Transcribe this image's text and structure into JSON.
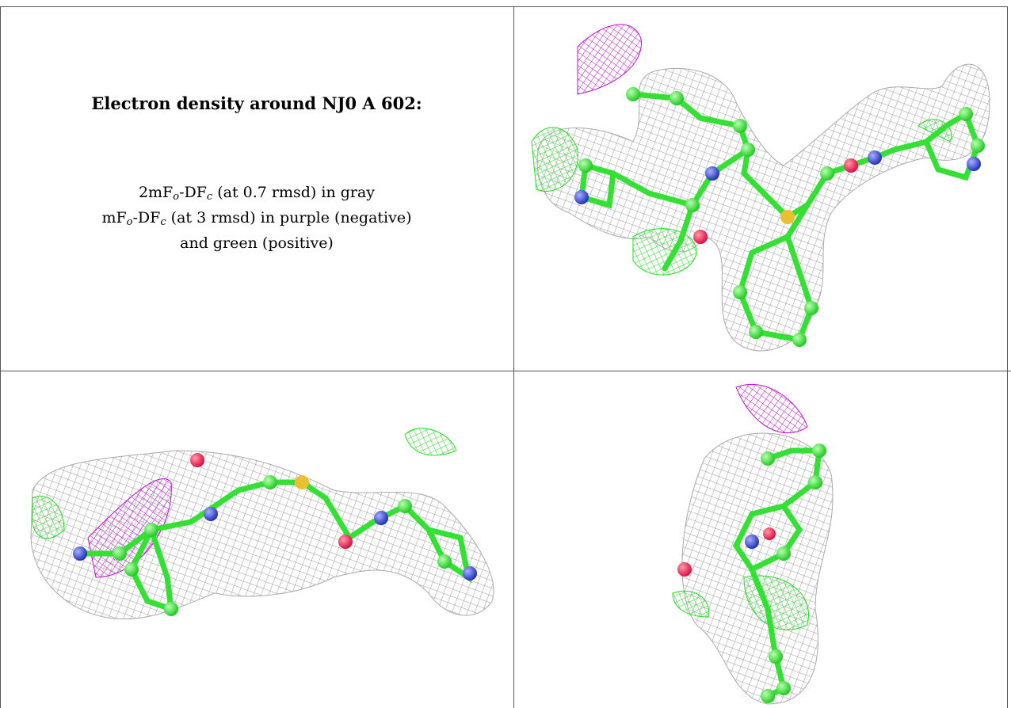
{
  "title": "Electron density around NJ0 A 602:",
  "legend": [
    [
      "2mF",
      "o",
      "-DF",
      "c",
      " (at 0.7 rmsd) in gray"
    ],
    [
      "mF",
      "o",
      "-DF",
      "c",
      " (at 3 rmsd) in purple (negative)"
    ],
    [
      "and green (positive)"
    ]
  ]
}
